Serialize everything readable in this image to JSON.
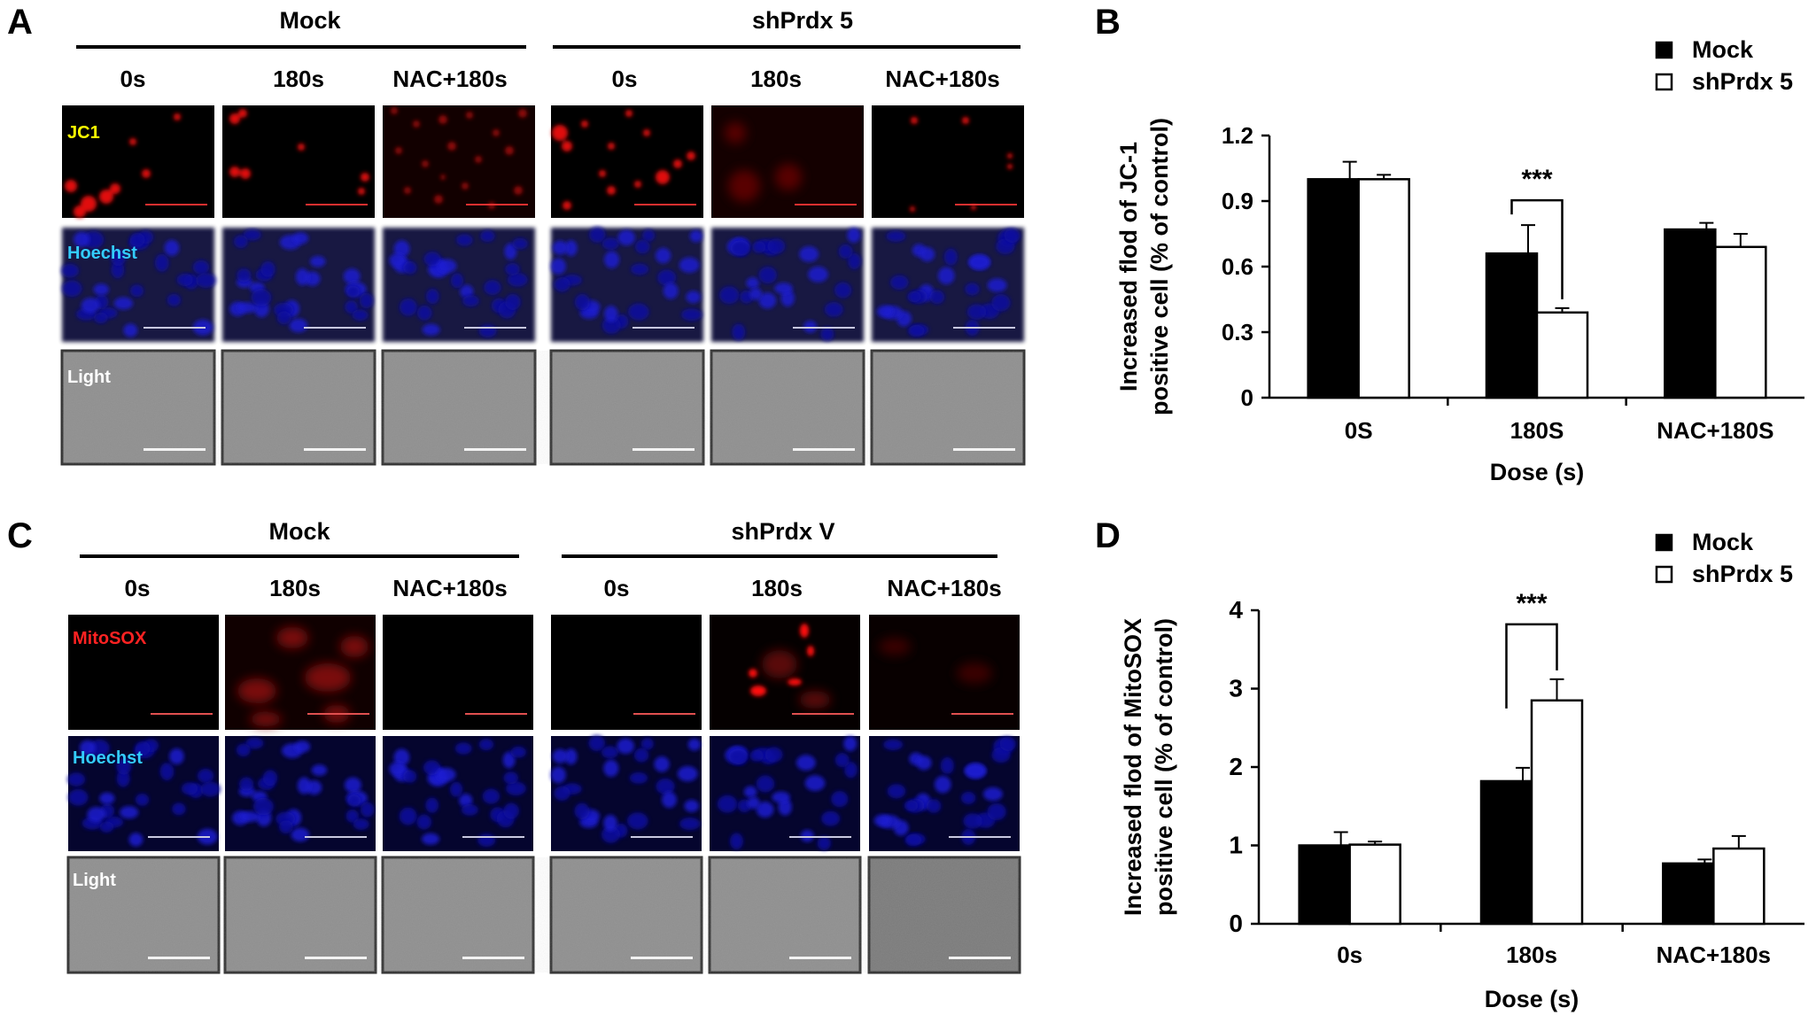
{
  "panels": {
    "A": {
      "letter": "A",
      "group_left": "Mock",
      "group_right": "shPrdx 5",
      "columns": [
        "0s",
        "180s",
        "NAC+180s",
        "0s",
        "180s",
        "NAC+180s"
      ],
      "rows": [
        "JC1",
        "Hoechst",
        "Light"
      ]
    },
    "C": {
      "letter": "C",
      "group_left": "Mock",
      "group_right": "shPrdx V",
      "columns": [
        "0s",
        "180s",
        "NAC+180s",
        "0s",
        "180s",
        "NAC+180s"
      ],
      "rows": [
        "MitoSOX",
        "Hoechst",
        "Light"
      ]
    },
    "B": {
      "letter": "B"
    },
    "D": {
      "letter": "D"
    }
  },
  "stain_colors": {
    "JC1": "#ffff00",
    "Hoechst": "#33ccff",
    "MitoSOX": "#ff2222",
    "Light": "#ffffff"
  },
  "chart_data": [
    {
      "panel": "B",
      "type": "bar",
      "categories": [
        "0S",
        "180S",
        "NAC+180S"
      ],
      "series": [
        {
          "name": "Mock",
          "values": [
            1.0,
            0.66,
            0.77
          ],
          "errors": [
            0.08,
            0.13,
            0.03
          ]
        },
        {
          "name": "shPrdx 5",
          "values": [
            1.0,
            0.39,
            0.69
          ],
          "errors": [
            0.02,
            0.02,
            0.06
          ]
        }
      ],
      "ylabel_line1": "Increased flod of JC-1",
      "ylabel_line2": "positive cell (% of control)",
      "xlabel": "Dose (s)",
      "ylim": [
        0,
        1.2
      ],
      "yticks": [
        "0",
        "0.3",
        "0.6",
        "0.9",
        "1.2"
      ],
      "significance": {
        "category_index": 1,
        "label": "***"
      },
      "legend": "top-right",
      "grid": false
    },
    {
      "panel": "D",
      "type": "bar",
      "categories": [
        "0s",
        "180s",
        "NAC+180s"
      ],
      "series": [
        {
          "name": "Mock",
          "values": [
            1.0,
            1.82,
            0.77
          ],
          "errors": [
            0.17,
            0.17,
            0.05
          ]
        },
        {
          "name": "shPrdx 5",
          "values": [
            1.01,
            2.85,
            0.96
          ],
          "errors": [
            0.04,
            0.27,
            0.16
          ]
        }
      ],
      "ylabel_line1": "Increased flod of MitoSOX",
      "ylabel_line2": "positive cell (% of control)",
      "xlabel": "Dose (s)",
      "ylim": [
        0,
        4
      ],
      "yticks": [
        "0",
        "1",
        "2",
        "3",
        "4"
      ],
      "significance": {
        "category_index": 1,
        "label": "***"
      },
      "legend": "top-right",
      "grid": false
    }
  ]
}
